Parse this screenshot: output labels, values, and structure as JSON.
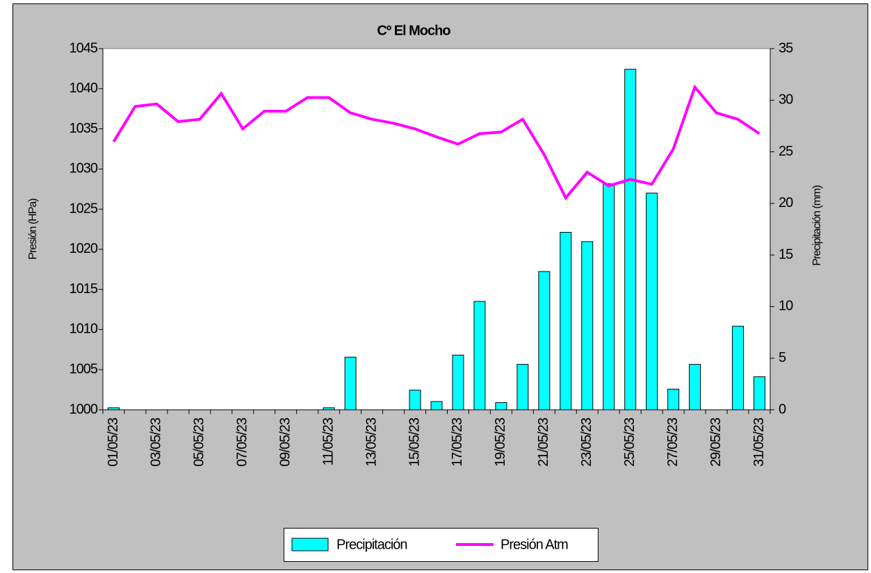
{
  "chart_data": {
    "type": "combo",
    "title": "Cº El Mocho",
    "y_label": "Presión (HPa)",
    "y2_label": "Precipitación (mm)",
    "categories": [
      "01/05/23",
      null,
      "03/05/23",
      null,
      "05/05/23",
      null,
      "07/05/23",
      null,
      "09/05/23",
      null,
      "11/05/23",
      null,
      "13/05/23",
      null,
      "15/05/23",
      null,
      "17/05/23",
      null,
      "19/05/23",
      null,
      "21/05/23",
      null,
      "23/05/23",
      null,
      "25/05/23",
      null,
      "27/05/23",
      null,
      "29/05/23",
      null,
      "31/05/23"
    ],
    "series": [
      {
        "name": "Precipitación",
        "type": "bar",
        "axis": "y2",
        "color": "#00ffff",
        "values": [
          0.2,
          0,
          0,
          0,
          0,
          0,
          0,
          0,
          0,
          0,
          0.2,
          5.1,
          0,
          0,
          1.9,
          0.8,
          5.3,
          10.5,
          0.7,
          4.4,
          13.4,
          17.2,
          16.3,
          21.9,
          33.0,
          21.0,
          2.0,
          4.4,
          0,
          8.1,
          3.2
        ]
      },
      {
        "name": "Presión Atm",
        "type": "line",
        "axis": "y",
        "color": "#ff00ff",
        "values": [
          1033.4,
          1037.8,
          1038.1,
          1035.9,
          1036.2,
          1039.4,
          1035.0,
          1037.2,
          1037.2,
          1038.9,
          1038.9,
          1037.0,
          1036.2,
          1035.7,
          1035.0,
          1034.0,
          1033.1,
          1034.4,
          1034.6,
          1036.2,
          1031.8,
          1026.4,
          1029.6,
          1027.9,
          1028.7,
          1028.1,
          1032.5,
          1040.2,
          1037.0,
          1036.2,
          1034.4
        ]
      }
    ],
    "ylim": [
      1000,
      1045
    ],
    "yticks": [
      1000,
      1005,
      1010,
      1015,
      1020,
      1025,
      1030,
      1035,
      1040,
      1045
    ],
    "y2lim": [
      0,
      35
    ],
    "y2ticks": [
      0,
      5,
      10,
      15,
      20,
      25,
      30,
      35
    ],
    "grid": false,
    "legend": "bottom"
  }
}
